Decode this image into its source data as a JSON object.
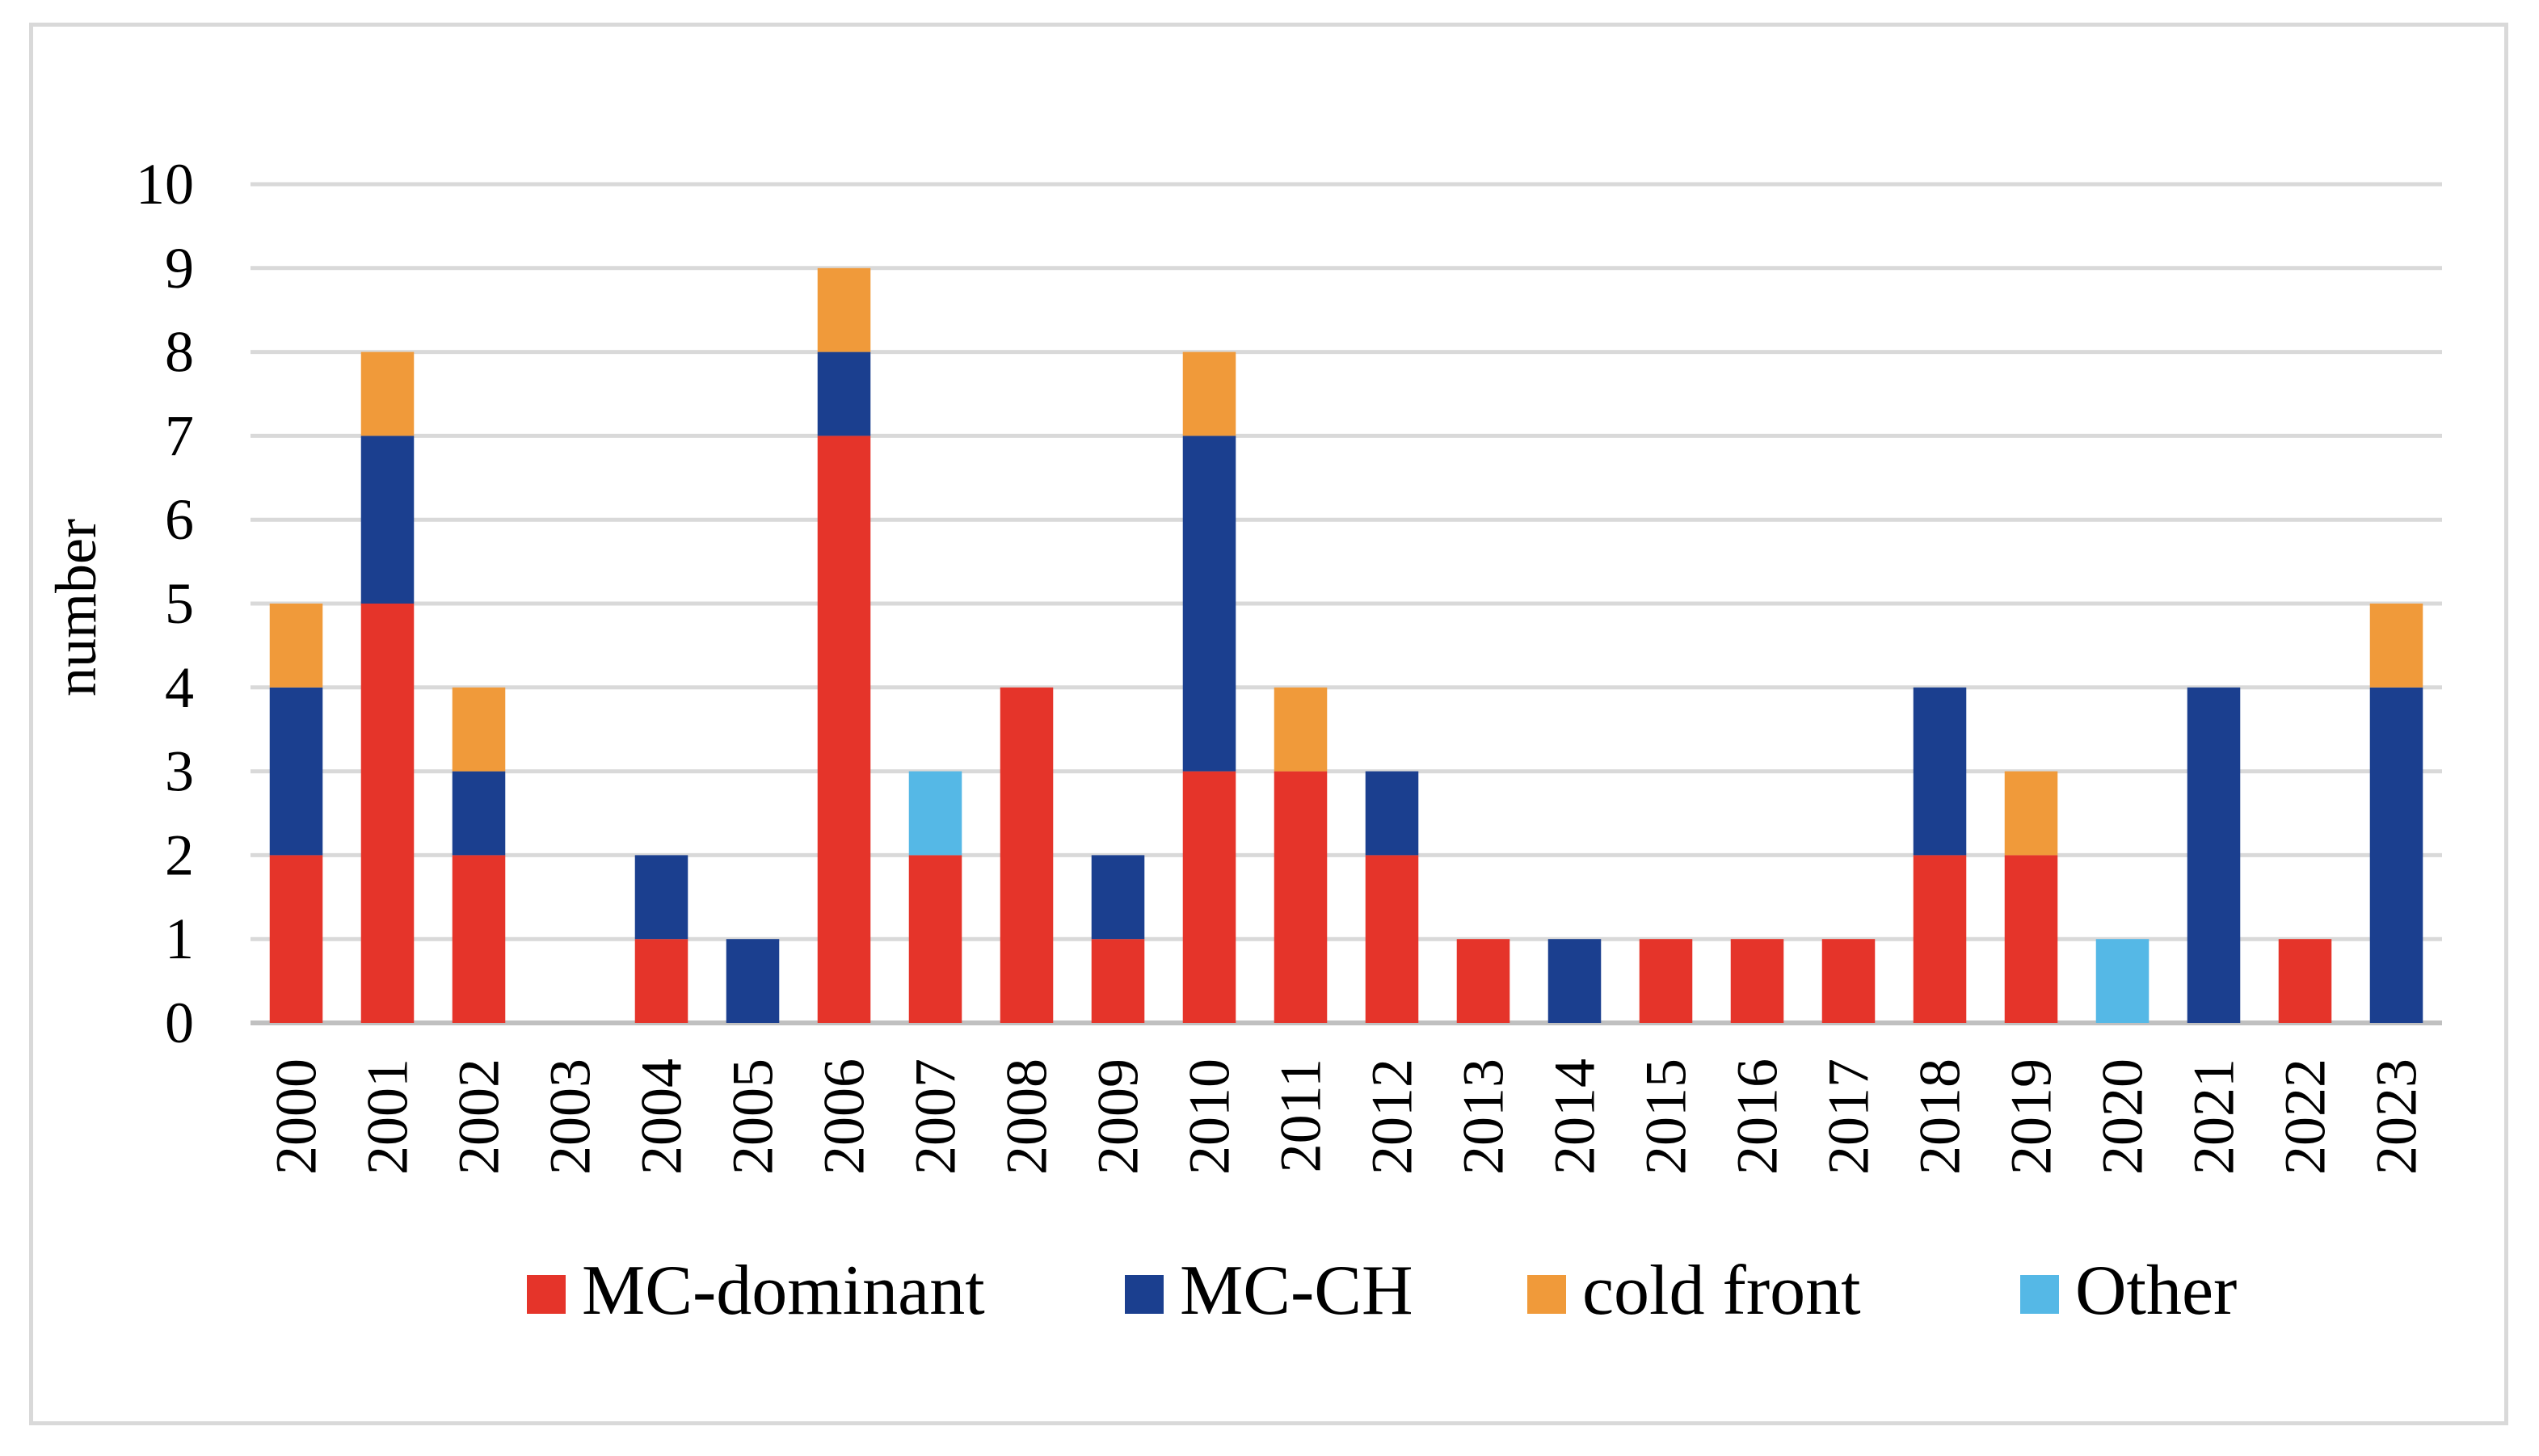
{
  "chart_data": {
    "type": "bar",
    "stacked": true,
    "title": "",
    "xlabel": "",
    "ylabel": "number",
    "ylim": [
      0,
      10
    ],
    "yticks": [
      0,
      1,
      2,
      3,
      4,
      5,
      6,
      7,
      8,
      9,
      10
    ],
    "grid": true,
    "legend_position": "bottom",
    "categories": [
      "2000",
      "2001",
      "2002",
      "2003",
      "2004",
      "2005",
      "2006",
      "2007",
      "2008",
      "2009",
      "2010",
      "2011",
      "2012",
      "2013",
      "2014",
      "2015",
      "2016",
      "2017",
      "2018",
      "2019",
      "2020",
      "2021",
      "2022",
      "2023"
    ],
    "series": [
      {
        "name": "MC-dominant",
        "color": "#e5342a",
        "values": [
          2,
          5,
          2,
          0,
          1,
          0,
          7,
          2,
          4,
          1,
          3,
          3,
          2,
          1,
          0,
          1,
          1,
          1,
          2,
          2,
          0,
          0,
          1,
          0
        ]
      },
      {
        "name": "MC-CH",
        "color": "#1b3f8f",
        "values": [
          2,
          2,
          1,
          0,
          1,
          1,
          1,
          0,
          0,
          1,
          4,
          0,
          1,
          0,
          1,
          0,
          0,
          0,
          2,
          0,
          0,
          4,
          0,
          4
        ]
      },
      {
        "name": "cold front",
        "color": "#f09a3a",
        "values": [
          1,
          1,
          1,
          0,
          0,
          0,
          1,
          0,
          0,
          0,
          1,
          1,
          0,
          0,
          0,
          0,
          0,
          0,
          0,
          1,
          0,
          0,
          0,
          1
        ]
      },
      {
        "name": "Other",
        "color": "#55b8e6",
        "values": [
          0,
          0,
          0,
          0,
          0,
          0,
          0,
          1,
          0,
          0,
          0,
          0,
          0,
          0,
          0,
          0,
          0,
          0,
          0,
          0,
          1,
          0,
          0,
          0
        ]
      }
    ]
  }
}
